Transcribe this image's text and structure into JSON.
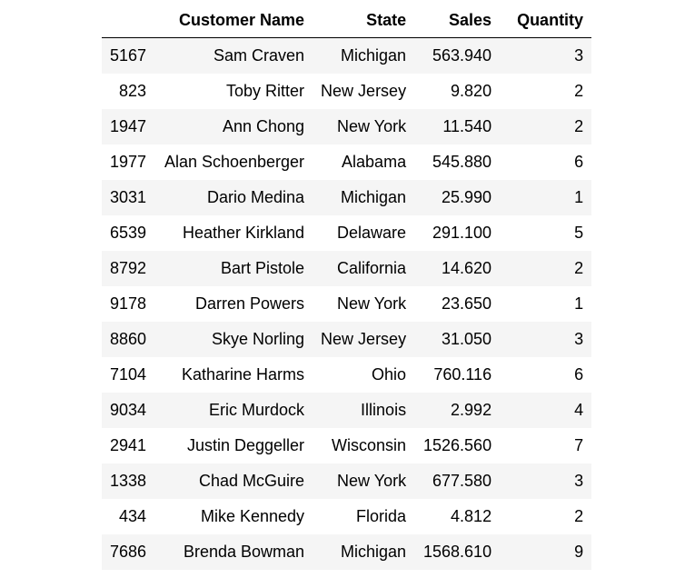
{
  "table": {
    "columns": [
      "",
      "Customer Name",
      "State",
      "Sales",
      "Quantity"
    ],
    "rows": [
      [
        "5167",
        "Sam Craven",
        "Michigan",
        "563.940",
        "3"
      ],
      [
        "823",
        "Toby Ritter",
        "New Jersey",
        "9.820",
        "2"
      ],
      [
        "1947",
        "Ann Chong",
        "New York",
        "11.540",
        "2"
      ],
      [
        "1977",
        "Alan Schoenberger",
        "Alabama",
        "545.880",
        "6"
      ],
      [
        "3031",
        "Dario Medina",
        "Michigan",
        "25.990",
        "1"
      ],
      [
        "6539",
        "Heather Kirkland",
        "Delaware",
        "291.100",
        "5"
      ],
      [
        "8792",
        "Bart Pistole",
        "California",
        "14.620",
        "2"
      ],
      [
        "9178",
        "Darren Powers",
        "New York",
        "23.650",
        "1"
      ],
      [
        "8860",
        "Skye Norling",
        "New Jersey",
        "31.050",
        "3"
      ],
      [
        "7104",
        "Katharine Harms",
        "Ohio",
        "760.116",
        "6"
      ],
      [
        "9034",
        "Eric Murdock",
        "Illinois",
        "2.992",
        "4"
      ],
      [
        "2941",
        "Justin Deggeller",
        "Wisconsin",
        "1526.560",
        "7"
      ],
      [
        "1338",
        "Chad McGuire",
        "New York",
        "677.580",
        "3"
      ],
      [
        "434",
        "Mike Kennedy",
        "Florida",
        "4.812",
        "2"
      ],
      [
        "7686",
        "Brenda Bowman",
        "Michigan",
        "1568.610",
        "9"
      ]
    ]
  }
}
